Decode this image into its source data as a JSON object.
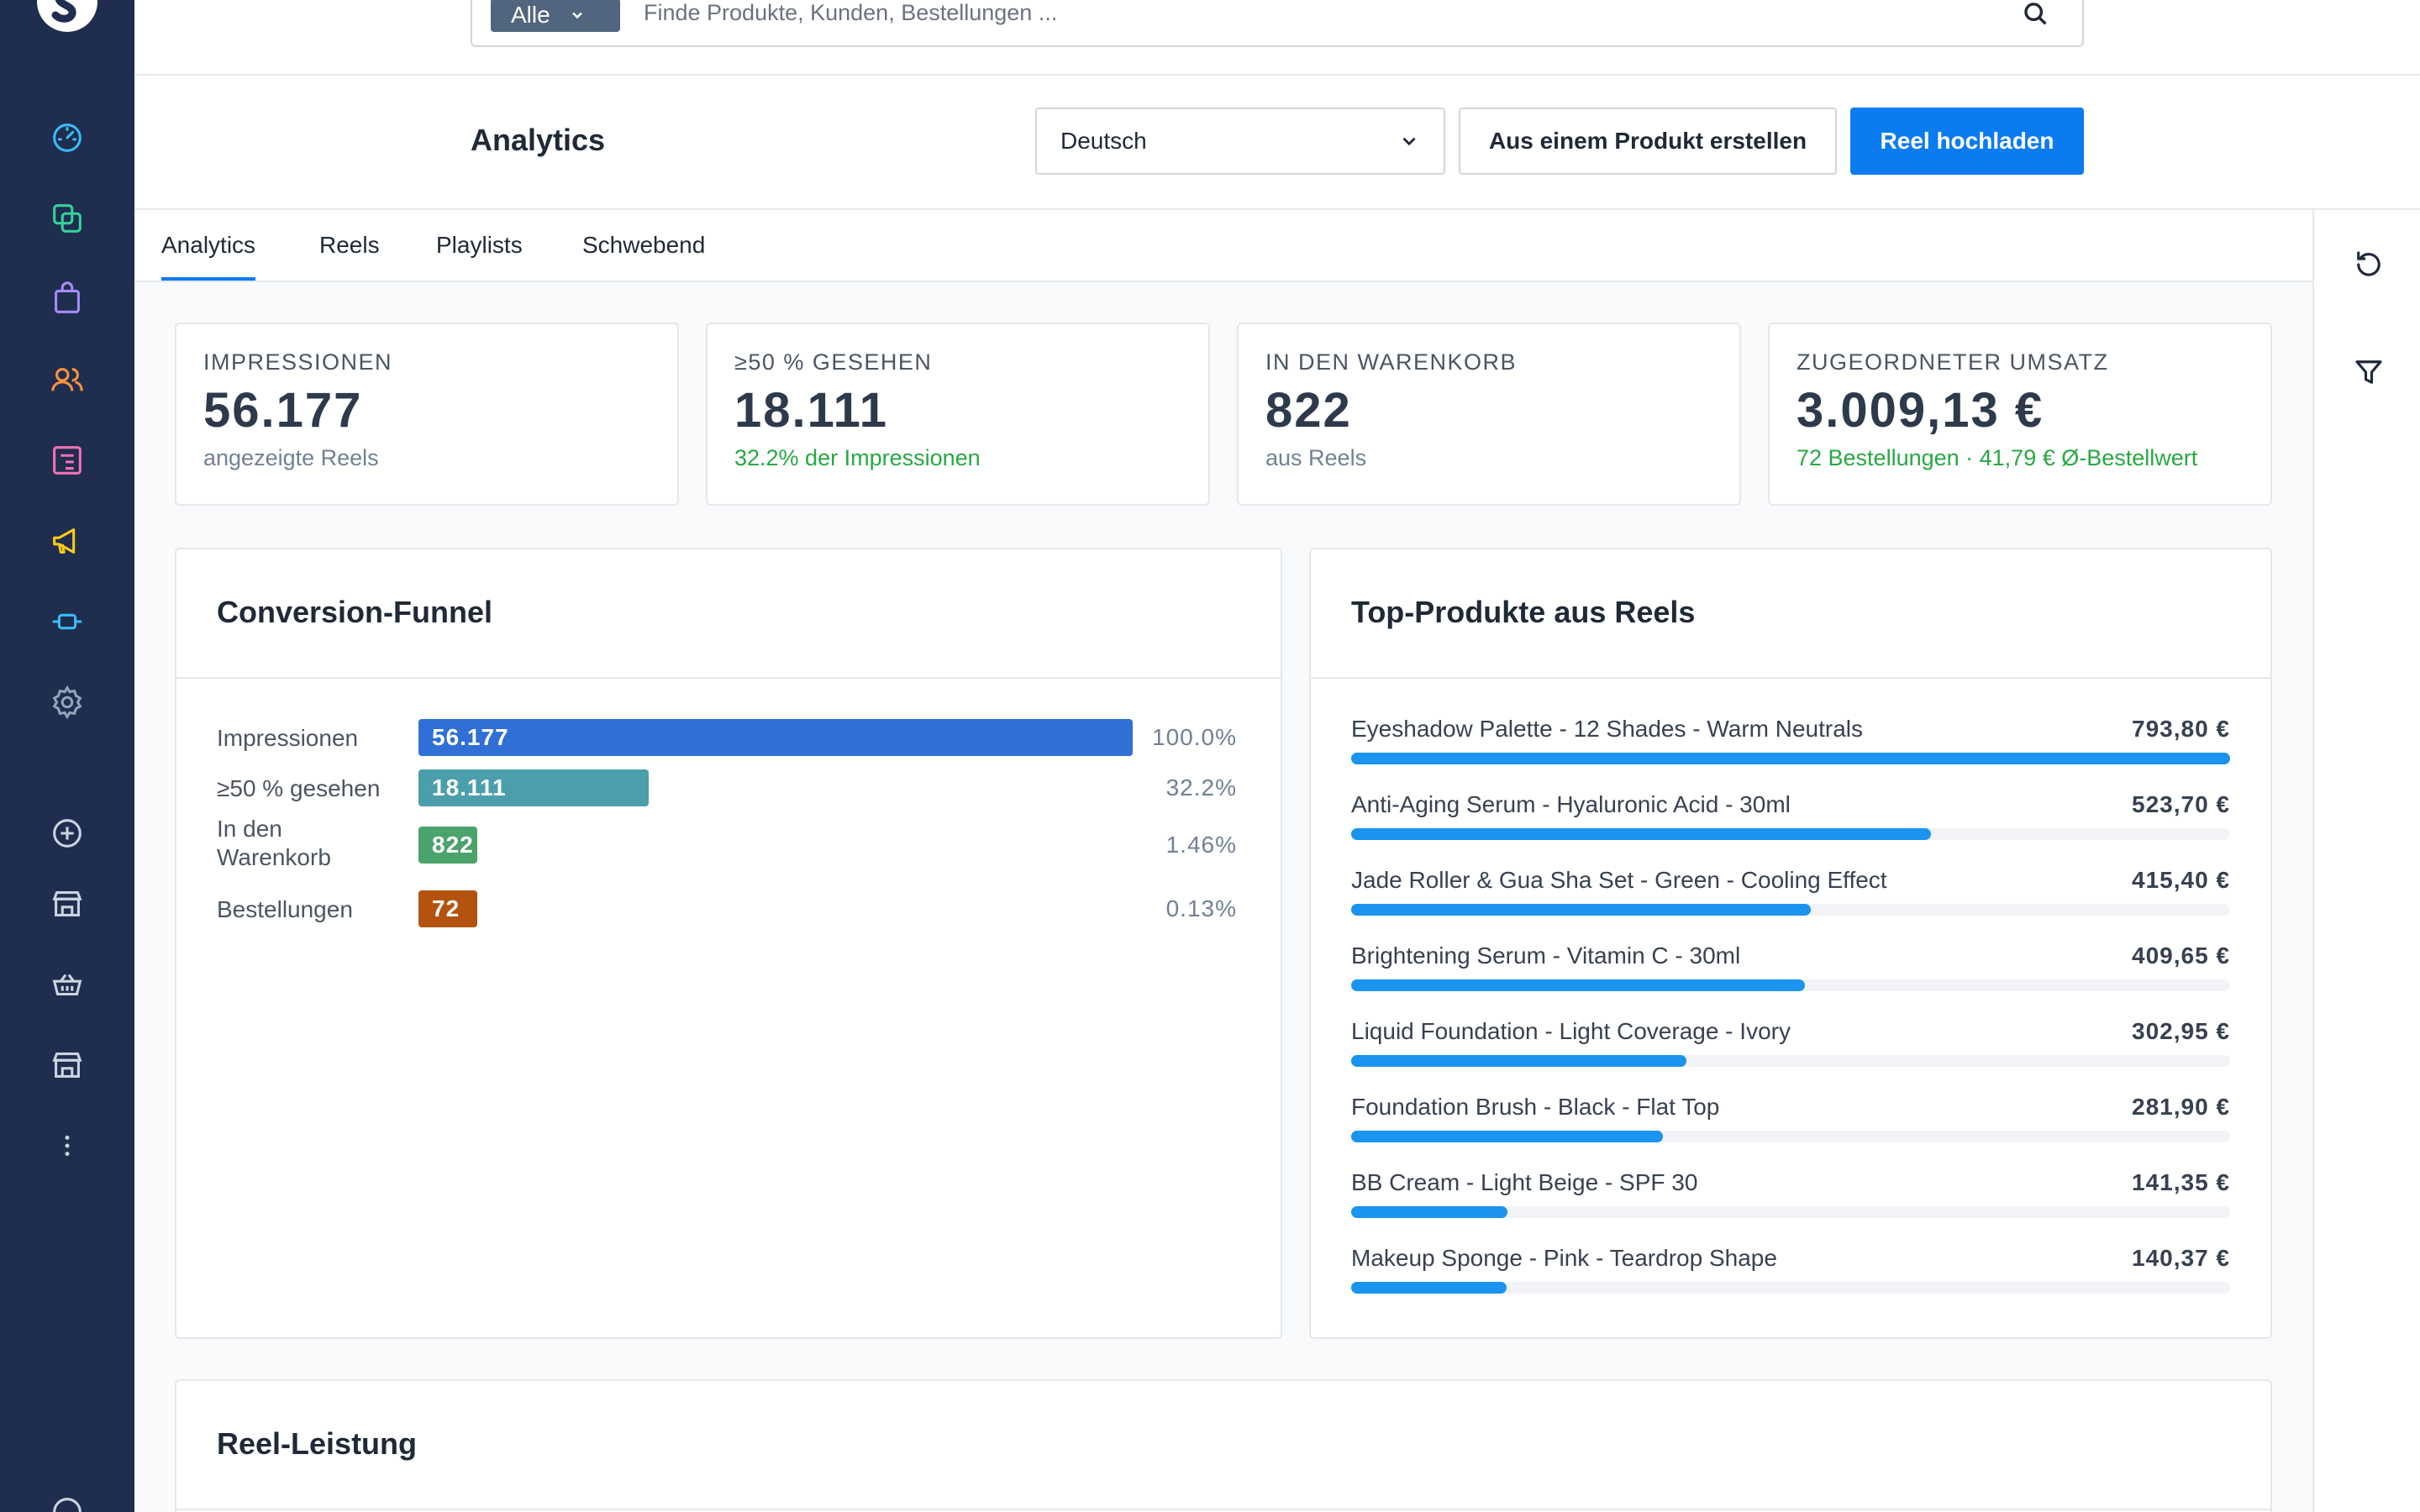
{
  "search": {
    "scope_label": "Alle",
    "placeholder": "Finde Produkte, Kunden, Bestellungen ..."
  },
  "header": {
    "title": "Analytics",
    "language_select": "Deutsch",
    "create_from_product": "Aus einem Produkt erstellen",
    "upload_reel": "Reel hochladen"
  },
  "tabs": [
    "Analytics",
    "Reels",
    "Playlists",
    "Schwebend"
  ],
  "kpis": [
    {
      "label": "IMPRESSIONEN",
      "value": "56.177",
      "sub": "angezeigte Reels"
    },
    {
      "label": "≥50 % GESEHEN",
      "value": "18.111",
      "sub": "32.2% der Impressionen"
    },
    {
      "label": "IN DEN WARENKORB",
      "value": "822",
      "sub": "aus Reels"
    },
    {
      "label": "ZUGEORDNETER UMSATZ",
      "value": "3.009,13 €",
      "sub": "72 Bestellungen · 41,79 € Ø-Bestellwert"
    }
  ],
  "funnel": {
    "title": "Conversion-Funnel",
    "rows": [
      {
        "label": "Impressionen",
        "value": "56.177",
        "percent": "100.0%",
        "fraction": 1.0,
        "color": "#2f6fd6"
      },
      {
        "label": "≥50 % gesehen",
        "value": "18.111",
        "percent": "32.2%",
        "fraction": 0.322,
        "color": "#4b9eab"
      },
      {
        "label": "In den Warenkorb",
        "value": "822",
        "percent": "1.46%",
        "fraction": 0.0146,
        "color": "#4aa36b"
      },
      {
        "label": "Bestellungen",
        "value": "72",
        "percent": "0.13%",
        "fraction": 0.0013,
        "color": "#b4530f"
      }
    ]
  },
  "top_products": {
    "title": "Top-Produkte aus Reels",
    "items": [
      {
        "name": "Eyeshadow Palette - 12 Shades - Warm Neutrals",
        "value": "793,80 €",
        "amount": 793.8
      },
      {
        "name": "Anti-Aging Serum - Hyaluronic Acid - 30ml",
        "value": "523,70 €",
        "amount": 523.7
      },
      {
        "name": "Jade Roller & Gua Sha Set - Green - Cooling Effect",
        "value": "415,40 €",
        "amount": 415.4
      },
      {
        "name": "Brightening Serum - Vitamin C - 30ml",
        "value": "409,65 €",
        "amount": 409.65
      },
      {
        "name": "Liquid Foundation - Light Coverage - Ivory",
        "value": "302,95 €",
        "amount": 302.95
      },
      {
        "name": "Foundation Brush - Black - Flat Top",
        "value": "281,90 €",
        "amount": 281.9
      },
      {
        "name": "BB Cream - Light Beige - SPF 30",
        "value": "141,35 €",
        "amount": 141.35
      },
      {
        "name": "Makeup Sponge - Pink - Teardrop Shape",
        "value": "140,37 €",
        "amount": 140.37
      }
    ]
  },
  "reel_performance": {
    "title": "Reel-Leistung"
  },
  "colors": {
    "primary": "#0b7cf0",
    "sidebar": "#1f2d4f",
    "bar": "#1a94ee",
    "positive": "#27a843"
  },
  "sidebar_icons": [
    "dashboard-icon",
    "catalog-icon",
    "orders-icon",
    "customers-icon",
    "content-icon",
    "marketing-icon",
    "extensions-icon",
    "settings-icon",
    "add-icon",
    "store-icon",
    "basket-icon",
    "storefront-icon",
    "more-icon"
  ]
}
